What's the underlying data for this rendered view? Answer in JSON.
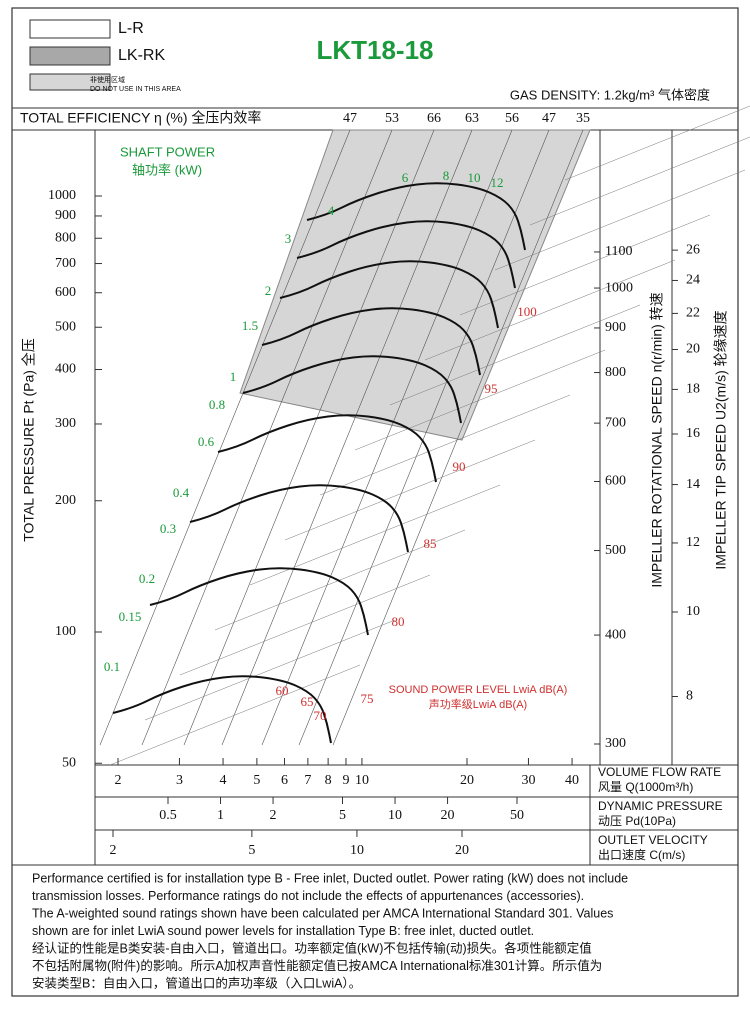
{
  "chart_data": {
    "type": "fan-curve",
    "title": "LKT18-18",
    "legend": {
      "items": [
        "L-R",
        "LK-RK"
      ],
      "note": [
        "非使用区域",
        "DO NOT USE IN THIS AREA"
      ]
    },
    "gas_density": "GAS DENSITY: 1.2kg/m³ 气体密度",
    "efficiency": {
      "label": "TOTAL EFFICIENCY η (%) 全压内效率",
      "values": [
        47,
        53,
        66,
        63,
        56,
        47,
        35
      ]
    },
    "shaft_power": {
      "label": [
        "SHAFT POWER",
        "轴功率 (kW)"
      ],
      "values": [
        0.1,
        0.15,
        0.2,
        0.3,
        0.4,
        0.6,
        0.8,
        1,
        1.5,
        2,
        3,
        4,
        6,
        8,
        10,
        12
      ]
    },
    "sound_power": {
      "label": [
        "SOUND POWER LEVEL LwiA dB(A)",
        "声功率级LwiA dB(A)"
      ],
      "values": [
        60,
        65,
        70,
        75,
        80,
        85,
        90,
        95,
        100
      ]
    },
    "y_axis": {
      "label": "TOTAL PRESSURE Pt (Pa) 全压",
      "ylim": [
        50,
        1250
      ],
      "yticks": [
        50,
        100,
        200,
        300,
        400,
        500,
        600,
        700,
        800,
        900,
        1000
      ],
      "log": true
    },
    "speed_axis": {
      "label": "IMPELLER ROTATIONAL SPEED n(r/min) 转速",
      "yticks": [
        300,
        400,
        500,
        600,
        700,
        800,
        900,
        1000,
        1100
      ]
    },
    "tip_speed_axis": {
      "label": "IMPELLER TIP SPEED U2(m/s) 轮缘速度",
      "yticks": [
        8,
        10,
        12,
        14,
        16,
        18,
        20,
        22,
        24,
        26
      ]
    },
    "flow_axis": {
      "label": [
        "VOLUME FLOW RATE",
        "风量  Q(1000m³/h)"
      ],
      "xticks": [
        2,
        3,
        4,
        5,
        6,
        7,
        8,
        9,
        10,
        20,
        30,
        40
      ]
    },
    "dynamic_pressure_axis": {
      "label": [
        "DYNAMIC PRESSURE",
        "动压   Pd(10Pa)"
      ],
      "xticks": [
        0.5,
        1,
        2,
        5,
        10,
        20,
        50
      ]
    },
    "velocity_axis": {
      "label": [
        "OUTLET VELOCITY",
        "出口速度  C(m/s)"
      ],
      "xticks": [
        2,
        5,
        10,
        20
      ]
    },
    "notes": [
      "Performance certified is for installation type B - Free inlet, Ducted outlet. Power rating (kW) does not include",
      "transmission losses. Performance ratings do not include the effects of appurtenances (accessories).",
      "The A-weighted sound ratings shown have been calculated per AMCA International Standard 301. Values",
      "shown are for inlet LwiA sound power levels for installation Type B: free inlet, ducted outlet.",
      "经认证的性能是B类安装-自由入口，管道出口。功率额定值(kW)不包括传输(动)损失。各项性能额定值",
      "不包括附属物(附件)的影响。所示A加权声音性能额定值已按AMCA International标准301计算。所示值为",
      "安装类型B：自由入口，管道出口的声功率级（入口LwiA）。"
    ]
  }
}
